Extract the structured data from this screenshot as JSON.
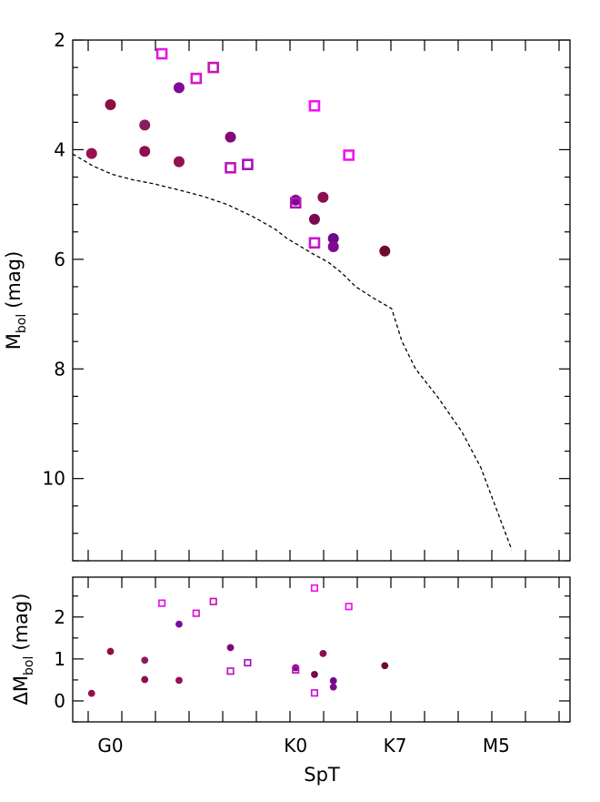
{
  "chart_data": [
    {
      "type": "scatter",
      "panel": "top",
      "xlabel": "",
      "ylabel_main": "M",
      "ylabel_sub": "bol",
      "ylabel_unit": "(mag)",
      "ylim": [
        11.5,
        2.0
      ],
      "y_ticks": [
        2,
        4,
        6,
        8,
        10
      ],
      "y_tick_labels": [
        "2",
        "4",
        "6",
        "8",
        "10"
      ],
      "series": [
        {
          "name": "filled circles",
          "marker": "filled-circle",
          "points": [
            {
              "x": 0.1,
              "y": 4.07,
              "color": "#9a0f50"
            },
            {
              "x": 1.2,
              "y": 3.18,
              "color": "#8c0f45"
            },
            {
              "x": 3.2,
              "y": 3.55,
              "color": "#8c1a60"
            },
            {
              "x": 3.2,
              "y": 4.03,
              "color": "#8c0f50"
            },
            {
              "x": 5.2,
              "y": 2.87,
              "color": "#800a9a"
            },
            {
              "x": 5.2,
              "y": 4.22,
              "color": "#960f50"
            },
            {
              "x": 8.2,
              "y": 3.77,
              "color": "#800a78"
            },
            {
              "x": 12.0,
              "y": 4.92,
              "color": "#7a0a8c"
            },
            {
              "x": 13.1,
              "y": 5.27,
              "color": "#780a50"
            },
            {
              "x": 13.6,
              "y": 4.87,
              "color": "#8c0f50"
            },
            {
              "x": 14.2,
              "y": 5.62,
              "color": "#6e0a8c"
            },
            {
              "x": 14.2,
              "y": 5.77,
              "color": "#820a8c"
            },
            {
              "x": 17.2,
              "y": 5.85,
              "color": "#6e0a32"
            }
          ]
        },
        {
          "name": "open squares",
          "marker": "open-square",
          "points": [
            {
              "x": 4.2,
              "y": 2.25,
              "color": "#e614e6"
            },
            {
              "x": 6.2,
              "y": 2.7,
              "color": "#dc14d2"
            },
            {
              "x": 7.2,
              "y": 2.5,
              "color": "#c814b4"
            },
            {
              "x": 8.2,
              "y": 4.33,
              "color": "#be14be"
            },
            {
              "x": 9.2,
              "y": 4.27,
              "color": "#a514be"
            },
            {
              "x": 12.0,
              "y": 4.97,
              "color": "#b414b4"
            },
            {
              "x": 13.1,
              "y": 3.2,
              "color": "#f014f0"
            },
            {
              "x": 13.1,
              "y": 5.7,
              "color": "#c814d2"
            },
            {
              "x": 15.1,
              "y": 4.1,
              "color": "#f014f0"
            }
          ]
        },
        {
          "name": "dashed reference track",
          "line_style": "dashed",
          "x": [
            -1.0,
            0.2,
            1.3,
            2.5,
            3.7,
            5.0,
            6.6,
            8.0,
            9.5,
            10.8,
            11.5,
            12.2,
            13.0,
            13.9,
            14.7,
            15.5,
            16.5,
            17.6,
            18.2,
            19.0,
            20.3,
            21.7,
            22.8,
            23.7,
            24.6
          ],
          "y": [
            4.08,
            4.3,
            4.45,
            4.55,
            4.62,
            4.72,
            4.85,
            5.0,
            5.22,
            5.45,
            5.62,
            5.75,
            5.9,
            6.05,
            6.25,
            6.5,
            6.7,
            6.9,
            7.5,
            8.0,
            8.52,
            9.15,
            9.8,
            10.55,
            11.3
          ]
        }
      ]
    },
    {
      "type": "scatter",
      "panel": "bottom",
      "xlabel": "SpT",
      "ylabel_main": "ΔM",
      "ylabel_sub": "bol",
      "ylabel_unit": "(mag)",
      "ylim": [
        -0.5,
        2.95
      ],
      "y_ticks": [
        0,
        1,
        2
      ],
      "y_tick_labels": [
        "0",
        "1",
        "2"
      ],
      "x_ticks": [
        1.2,
        12.0,
        17.8,
        23.7
      ],
      "x_tick_labels": [
        "G0",
        "K0",
        "K7",
        "M5"
      ],
      "xlim": [
        -1.0,
        28.0
      ],
      "series": [
        {
          "name": "filled circles",
          "marker": "filled-circle",
          "points": [
            {
              "x": 0.1,
              "y": 0.18,
              "color": "#9a0f50"
            },
            {
              "x": 1.2,
              "y": 1.18,
              "color": "#8c0f45"
            },
            {
              "x": 3.2,
              "y": 0.97,
              "color": "#8c1a60"
            },
            {
              "x": 3.2,
              "y": 0.51,
              "color": "#8c0f50"
            },
            {
              "x": 5.2,
              "y": 1.83,
              "color": "#800a9a"
            },
            {
              "x": 5.2,
              "y": 0.49,
              "color": "#960f50"
            },
            {
              "x": 8.2,
              "y": 1.27,
              "color": "#800a78"
            },
            {
              "x": 12.0,
              "y": 0.79,
              "color": "#7a0a8c"
            },
            {
              "x": 13.1,
              "y": 0.63,
              "color": "#780a50"
            },
            {
              "x": 13.6,
              "y": 1.13,
              "color": "#8c0f50"
            },
            {
              "x": 14.2,
              "y": 0.48,
              "color": "#6e0a8c"
            },
            {
              "x": 14.2,
              "y": 0.33,
              "color": "#820a8c"
            },
            {
              "x": 17.2,
              "y": 0.84,
              "color": "#6e0a32"
            }
          ]
        },
        {
          "name": "open squares",
          "marker": "open-square",
          "points": [
            {
              "x": 4.2,
              "y": 2.33,
              "color": "#e614e6"
            },
            {
              "x": 6.2,
              "y": 2.09,
              "color": "#dc14d2"
            },
            {
              "x": 7.2,
              "y": 2.37,
              "color": "#c814b4"
            },
            {
              "x": 8.2,
              "y": 0.71,
              "color": "#be14be"
            },
            {
              "x": 9.2,
              "y": 0.91,
              "color": "#a514be"
            },
            {
              "x": 12.0,
              "y": 0.74,
              "color": "#b414b4"
            },
            {
              "x": 13.1,
              "y": 2.69,
              "color": "#f014f0"
            },
            {
              "x": 13.1,
              "y": 0.19,
              "color": "#c814d2"
            },
            {
              "x": 15.1,
              "y": 2.25,
              "color": "#f014f0"
            }
          ]
        }
      ]
    }
  ]
}
